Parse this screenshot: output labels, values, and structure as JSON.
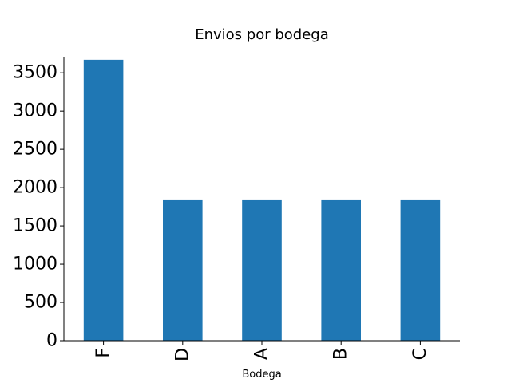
{
  "chart_data": {
    "type": "bar",
    "title": "Envios por bodega",
    "xlabel": "Bodega",
    "ylabel": "",
    "categories": [
      "F",
      "D",
      "A",
      "B",
      "C"
    ],
    "values": [
      3670,
      1835,
      1835,
      1835,
      1835
    ],
    "ylim": [
      0,
      3700
    ],
    "yticks": [
      0,
      500,
      1000,
      1500,
      2000,
      2500,
      3000,
      3500
    ],
    "grid": false,
    "legend": "none",
    "bar_color": "#1f77b4"
  }
}
